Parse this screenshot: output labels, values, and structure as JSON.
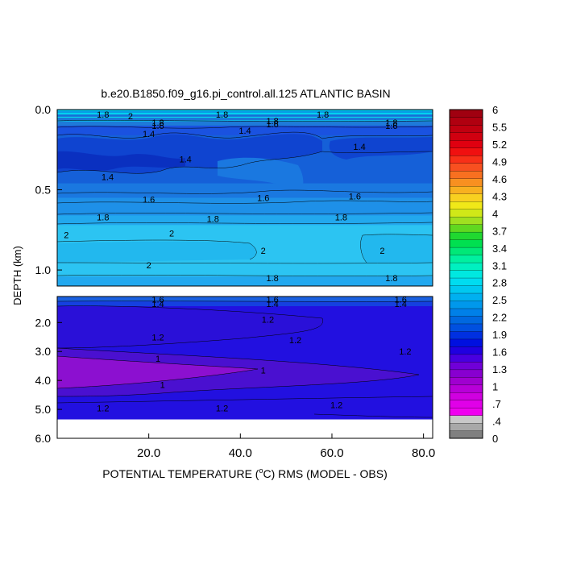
{
  "chart_data": {
    "type": "heatmap",
    "title": "b.e20.B1850.f09_g16.pi_control.all.125 ATLANTIC BASIN",
    "xlabel": "POTENTIAL TEMPERATURE (",
    "xlabel_sup": "o",
    "xlabel_tail": "C) RMS (MODEL - OBS)",
    "ylabel": "DEPTH (km)",
    "xlim": [
      0,
      82
    ],
    "x_ticks": [
      {
        "value": 20,
        "label": "20.0"
      },
      {
        "value": 40,
        "label": "40.0"
      },
      {
        "value": 60,
        "label": "60.0"
      },
      {
        "value": 80,
        "label": "80.0"
      }
    ],
    "upper_panel": {
      "ylim": [
        0,
        1.1
      ],
      "y_ticks": [
        {
          "value": 0.0,
          "label": "0.0"
        },
        {
          "value": 0.5,
          "label": "0.5"
        },
        {
          "value": 1.0,
          "label": "1.0"
        }
      ],
      "bands": [
        {
          "from": 0.0,
          "to": 0.03,
          "color": "#00c8f0"
        },
        {
          "from": 0.03,
          "to": 0.1,
          "color": "#1e7ad8"
        },
        {
          "from": 0.1,
          "to": 0.16,
          "color": "#1a52e0"
        },
        {
          "from": 0.16,
          "to": 0.46,
          "color": "#1560d8"
        },
        {
          "from": 0.46,
          "to": 0.55,
          "color": "#1a78e0"
        },
        {
          "from": 0.55,
          "to": 0.66,
          "color": "#1e90e8"
        },
        {
          "from": 0.66,
          "to": 0.72,
          "color": "#22a8ee"
        },
        {
          "from": 0.72,
          "to": 1.04,
          "color": "#2cc4f2"
        },
        {
          "from": 1.04,
          "to": 1.1,
          "color": "#22a8ee"
        }
      ],
      "contour_labels": [
        {
          "x": 10,
          "y": 0.03,
          "text": "1.8"
        },
        {
          "x": 16,
          "y": 0.04,
          "text": "2"
        },
        {
          "x": 36,
          "y": 0.03,
          "text": "1.8"
        },
        {
          "x": 58,
          "y": 0.03,
          "text": "1.8"
        },
        {
          "x": 22,
          "y": 0.08,
          "text": "1.8"
        },
        {
          "x": 22,
          "y": 0.1,
          "text": "1.6"
        },
        {
          "x": 47,
          "y": 0.07,
          "text": "1.8"
        },
        {
          "x": 47,
          "y": 0.09,
          "text": "1.6"
        },
        {
          "x": 73,
          "y": 0.08,
          "text": "1.8"
        },
        {
          "x": 73,
          "y": 0.1,
          "text": "1.6"
        },
        {
          "x": 20,
          "y": 0.15,
          "text": "1.4"
        },
        {
          "x": 41,
          "y": 0.13,
          "text": "1.4"
        },
        {
          "x": 66,
          "y": 0.23,
          "text": "1.4"
        },
        {
          "x": 28,
          "y": 0.31,
          "text": "1.4"
        },
        {
          "x": 11,
          "y": 0.42,
          "text": "1.4"
        },
        {
          "x": 20,
          "y": 0.56,
          "text": "1.6"
        },
        {
          "x": 45,
          "y": 0.55,
          "text": "1.6"
        },
        {
          "x": 65,
          "y": 0.54,
          "text": "1.6"
        },
        {
          "x": 10,
          "y": 0.67,
          "text": "1.8"
        },
        {
          "x": 34,
          "y": 0.68,
          "text": "1.8"
        },
        {
          "x": 62,
          "y": 0.67,
          "text": "1.8"
        },
        {
          "x": 2,
          "y": 0.78,
          "text": "2"
        },
        {
          "x": 25,
          "y": 0.77,
          "text": "2"
        },
        {
          "x": 45,
          "y": 0.88,
          "text": "2"
        },
        {
          "x": 71,
          "y": 0.88,
          "text": "2"
        },
        {
          "x": 20,
          "y": 0.97,
          "text": "2"
        },
        {
          "x": 47,
          "y": 1.05,
          "text": "1.8"
        },
        {
          "x": 73,
          "y": 1.05,
          "text": "1.8"
        }
      ]
    },
    "lower_panel": {
      "ylim": [
        1.1,
        6.0
      ],
      "y_ticks": [
        {
          "value": 2.0,
          "label": "2.0"
        },
        {
          "value": 3.0,
          "label": "3.0"
        },
        {
          "value": 4.0,
          "label": "4.0"
        },
        {
          "value": 5.0,
          "label": "5.0"
        },
        {
          "value": 6.0,
          "label": "6.0"
        }
      ],
      "data_bottom": 5.35,
      "contour_labels": [
        {
          "x": 22,
          "y": 1.2,
          "text": "1.6"
        },
        {
          "x": 22,
          "y": 1.35,
          "text": "1.4"
        },
        {
          "x": 47,
          "y": 1.2,
          "text": "1.6"
        },
        {
          "x": 47,
          "y": 1.35,
          "text": "1.4"
        },
        {
          "x": 75,
          "y": 1.2,
          "text": "1.6"
        },
        {
          "x": 75,
          "y": 1.35,
          "text": "1.4"
        },
        {
          "x": 46,
          "y": 1.9,
          "text": "1.2"
        },
        {
          "x": 22,
          "y": 2.5,
          "text": "1.2"
        },
        {
          "x": 52,
          "y": 2.6,
          "text": "1.2"
        },
        {
          "x": 76,
          "y": 3.0,
          "text": "1.2"
        },
        {
          "x": 22,
          "y": 3.25,
          "text": "1"
        },
        {
          "x": 45,
          "y": 3.65,
          "text": "1"
        },
        {
          "x": 23,
          "y": 4.15,
          "text": "1"
        },
        {
          "x": 10,
          "y": 4.95,
          "text": "1.2"
        },
        {
          "x": 36,
          "y": 4.95,
          "text": "1.2"
        },
        {
          "x": 61,
          "y": 4.85,
          "text": "1.2"
        }
      ]
    },
    "colorbar": {
      "levels": [
        0.2,
        0.4,
        0.5,
        0.6,
        0.7,
        0.8,
        0.9,
        1.0,
        1.1,
        1.2,
        1.3,
        1.4,
        1.5,
        1.6,
        1.7,
        1.8,
        1.9,
        2.0,
        2.1,
        2.2,
        2.4,
        2.5,
        2.6,
        2.8,
        2.9,
        3.1,
        3.2,
        3.4,
        3.5,
        3.7,
        3.8,
        4.0,
        4.2,
        4.3,
        4.5,
        4.6,
        4.8,
        4.9,
        5.0,
        5.2,
        5.4,
        5.5,
        5.8
      ],
      "labels": [
        "0",
        ".4",
        ".7",
        "1",
        "1.3",
        "1.6",
        "1.9",
        "2.2",
        "2.5",
        "2.8",
        "3.1",
        "3.4",
        "3.7",
        "4",
        "4.3",
        "4.6",
        "4.9",
        "5.2",
        "5.5",
        "6"
      ],
      "colors": [
        "#808080",
        "#a8a8a8",
        "#c8c8c8",
        "#f000f0",
        "#e000e8",
        "#d000e0",
        "#b800d8",
        "#a000d0",
        "#8800d0",
        "#7000d8",
        "#4800e0",
        "#2000e0",
        "#0010e0",
        "#0030e0",
        "#0050e0",
        "#0068e0",
        "#0080e8",
        "#0098ec",
        "#00b0f0",
        "#00c8f0",
        "#00dcf0",
        "#00e8e0",
        "#00f0c0",
        "#00f0a0",
        "#00e878",
        "#00e050",
        "#20d830",
        "#60d820",
        "#a0e020",
        "#d0e818",
        "#f0e818",
        "#f8d020",
        "#f8b020",
        "#f89020",
        "#f87020",
        "#f85020",
        "#f83018",
        "#f01010",
        "#e00010",
        "#d00010",
        "#c00010",
        "#b00010",
        "#a00010"
      ]
    }
  }
}
